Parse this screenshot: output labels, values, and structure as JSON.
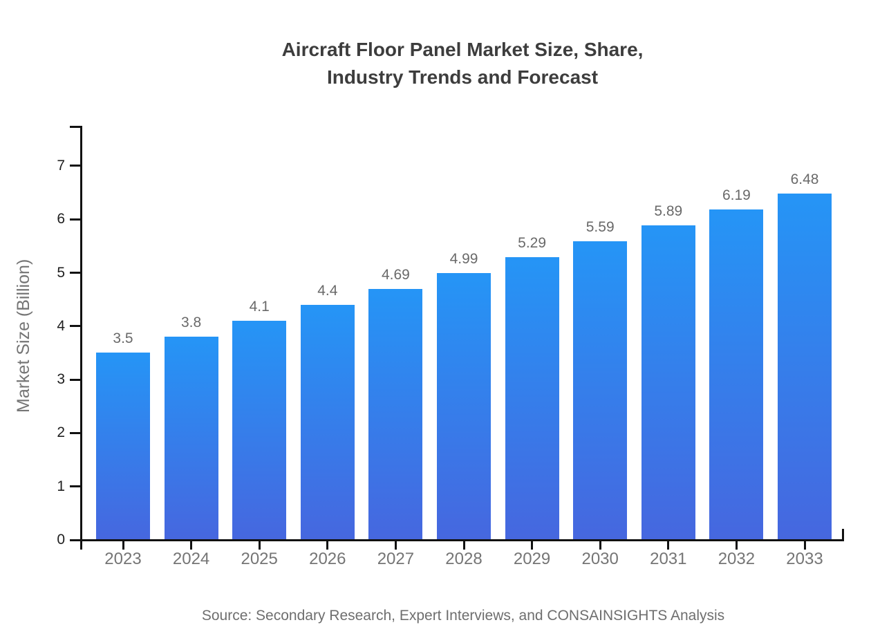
{
  "chart_data": {
    "type": "bar",
    "title_lines": [
      "Aircraft Floor Panel Market Size, Share,",
      "Industry Trends and Forecast"
    ],
    "ylabel": "Market Size (Billion)",
    "xlabel": "",
    "categories": [
      "2023",
      "2024",
      "2025",
      "2026",
      "2027",
      "2028",
      "2029",
      "2030",
      "2031",
      "2032",
      "2033"
    ],
    "values": [
      3.5,
      3.8,
      4.1,
      4.4,
      4.69,
      4.99,
      5.29,
      5.59,
      5.89,
      6.19,
      6.48
    ],
    "value_labels": [
      "3.5",
      "3.8",
      "4.1",
      "4.4",
      "4.69",
      "4.99",
      "5.29",
      "5.59",
      "5.89",
      "6.19",
      "6.48"
    ],
    "y_ticks": [
      0,
      1,
      2,
      3,
      4,
      5,
      6,
      7
    ],
    "ylim": [
      0,
      7.75
    ],
    "grid": "off",
    "legend": "none",
    "source": "Source: Secondary Research, Expert Interviews, and CONSAINSIGHTS Analysis",
    "colors": {
      "bar_gradient_top": "#2595f6",
      "bar_gradient_bottom": "#4667df",
      "axis": "#111111",
      "title_text": "#3d3d3d",
      "tick_text": "#1f1f1f",
      "label_text": "#696969",
      "category_text": "#757575",
      "source_text": "#6e6e6e"
    }
  }
}
